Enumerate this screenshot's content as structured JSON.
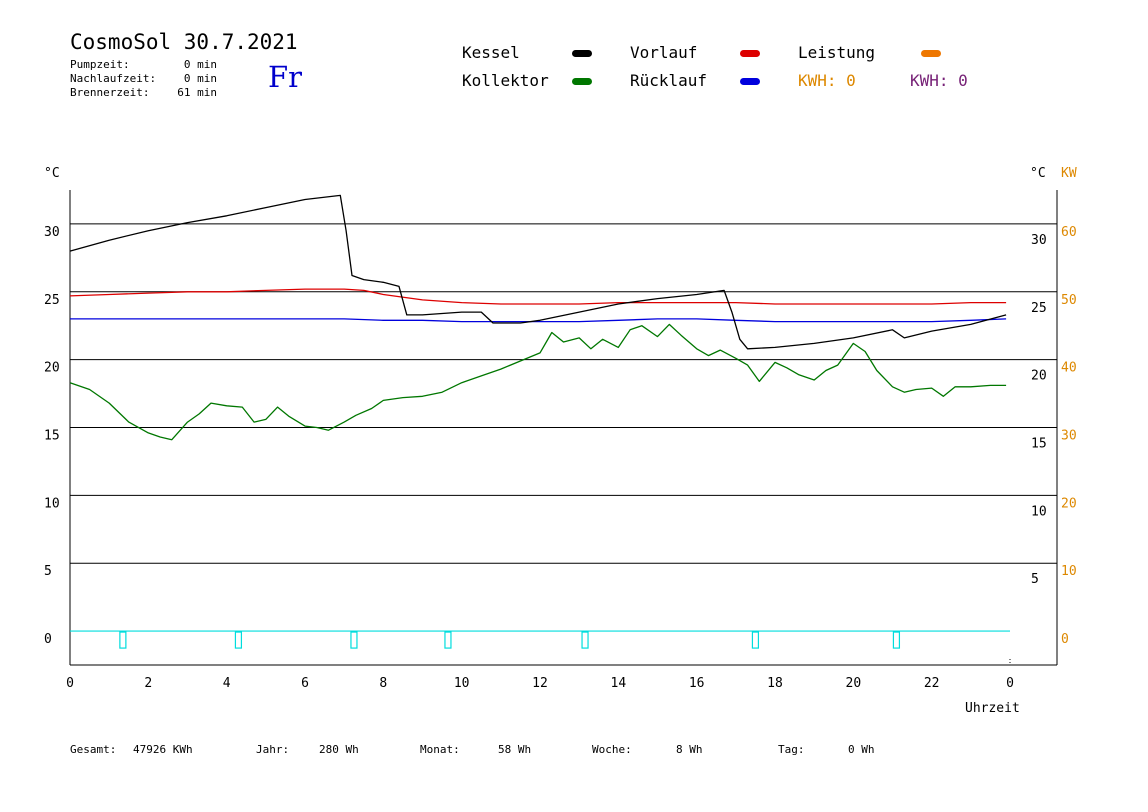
{
  "header": {
    "title": "CosmoSol 30.7.2021",
    "weekday": "Fr",
    "stats": [
      {
        "label": "Pumpzeit:",
        "value": "0 min"
      },
      {
        "label": "Nachlaufzeit:",
        "value": "0 min"
      },
      {
        "label": "Brennerzeit:",
        "value": "61 min"
      }
    ]
  },
  "legend": {
    "items": [
      {
        "label": "Kessel",
        "color": "#000000"
      },
      {
        "label": "Vorlauf",
        "color": "#dd0000"
      },
      {
        "label": "Leistung",
        "color": "#ee7700"
      },
      {
        "label": "Kollektor",
        "color": "#007700"
      },
      {
        "label": "Rücklauf",
        "color": "#0000dd"
      }
    ],
    "kwh_orange": "KWH: 0",
    "kwh_purple": "KWH: 0",
    "kwh_orange_color": "#dd8800",
    "kwh_purple_color": "#772277"
  },
  "footer": {
    "items": [
      {
        "label": "Gesamt:",
        "value": "47926 KWh"
      },
      {
        "label": "Jahr:",
        "value": "280 Wh"
      },
      {
        "label": "Monat:",
        "value": "58 Wh"
      },
      {
        "label": "Woche:",
        "value": "8 Wh"
      },
      {
        "label": "Tag:",
        "value": "0 Wh"
      }
    ]
  },
  "chart_data": {
    "type": "line",
    "title": "",
    "xlabel": "Uhrzeit",
    "ylabel_left": "°C",
    "ylabel_right_c": "°C",
    "ylabel_right_kw": "KW",
    "xlim": [
      0,
      24
    ],
    "ylim": [
      -2.5,
      32.5
    ],
    "grid": true,
    "x_ticks": [
      "0",
      "2",
      "4",
      "6",
      "8",
      "10",
      "12",
      "14",
      "16",
      "18",
      "20",
      "22",
      "0"
    ],
    "y_ticks_left": [
      "0",
      "5",
      "10",
      "15",
      "20",
      "25",
      "30"
    ],
    "y_ticks_right_c": [
      "5",
      "10",
      "15",
      "20",
      "25",
      "30"
    ],
    "y_ticks_right_kw": [
      "0",
      "10",
      "20",
      "30",
      "40",
      "50",
      "60"
    ],
    "series": [
      {
        "name": "Kessel",
        "color": "#000000",
        "x": [
          0,
          1,
          2,
          3,
          4,
          5,
          6,
          6.9,
          7.05,
          7.2,
          7.5,
          8.0,
          8.4,
          8.6,
          9.0,
          10.0,
          10.5,
          10.8,
          11.5,
          12,
          13,
          14,
          15,
          16,
          16.7,
          16.9,
          17.1,
          17.3,
          18,
          19,
          20,
          21,
          21.3,
          22,
          23,
          23.9
        ],
        "y": [
          28,
          28.8,
          29.5,
          30.1,
          30.6,
          31.2,
          31.8,
          32.1,
          29.5,
          26.2,
          25.9,
          25.7,
          25.4,
          23.3,
          23.3,
          23.5,
          23.5,
          22.7,
          22.7,
          22.9,
          23.5,
          24.1,
          24.5,
          24.8,
          25.1,
          23.5,
          21.5,
          20.8,
          20.9,
          21.2,
          21.6,
          22.2,
          21.6,
          22.1,
          22.6,
          23.3
        ]
      },
      {
        "name": "Vorlauf",
        "color": "#dd0000",
        "x": [
          0,
          1,
          2,
          3,
          4,
          5,
          6,
          7,
          7.5,
          8,
          9,
          10,
          11,
          12,
          13,
          14,
          15,
          16,
          17,
          18,
          19,
          20,
          21,
          22,
          23,
          23.9
        ],
        "y": [
          24.7,
          24.8,
          24.9,
          25.0,
          25.0,
          25.1,
          25.2,
          25.2,
          25.1,
          24.8,
          24.4,
          24.2,
          24.1,
          24.1,
          24.1,
          24.2,
          24.2,
          24.2,
          24.2,
          24.1,
          24.1,
          24.1,
          24.1,
          24.1,
          24.2,
          24.2
        ]
      },
      {
        "name": "Rücklauf",
        "color": "#0000dd",
        "x": [
          0,
          1,
          2,
          3,
          4,
          5,
          6,
          7,
          8,
          9,
          10,
          11,
          12,
          13,
          14,
          15,
          16,
          17,
          18,
          19,
          20,
          21,
          22,
          23,
          23.9
        ],
        "y": [
          23.0,
          23.0,
          23.0,
          23.0,
          23.0,
          23.0,
          23.0,
          23.0,
          22.9,
          22.9,
          22.8,
          22.8,
          22.8,
          22.8,
          22.9,
          23.0,
          23.0,
          22.9,
          22.8,
          22.8,
          22.8,
          22.8,
          22.8,
          22.9,
          23.0
        ]
      },
      {
        "name": "Kollektor",
        "color": "#007700",
        "x": [
          0,
          0.5,
          1,
          1.5,
          2,
          2.3,
          2.6,
          3,
          3.3,
          3.6,
          4,
          4.4,
          4.7,
          5,
          5.3,
          5.6,
          6,
          6.3,
          6.6,
          7,
          7.3,
          7.7,
          8,
          8.5,
          9,
          9.5,
          10,
          10.5,
          11,
          11.5,
          12,
          12.3,
          12.6,
          13,
          13.3,
          13.6,
          14,
          14.3,
          14.6,
          15,
          15.3,
          15.6,
          16,
          16.3,
          16.6,
          17,
          17.3,
          17.6,
          18,
          18.3,
          18.6,
          19,
          19.3,
          19.6,
          20,
          20.3,
          20.6,
          21,
          21.3,
          21.6,
          22,
          22.3,
          22.6,
          23,
          23.5,
          23.9
        ],
        "y": [
          18.3,
          17.8,
          16.8,
          15.4,
          14.6,
          14.3,
          14.1,
          15.4,
          16.0,
          16.8,
          16.6,
          16.5,
          15.4,
          15.6,
          16.5,
          15.8,
          15.1,
          15.0,
          14.8,
          15.4,
          15.9,
          16.4,
          17.0,
          17.2,
          17.3,
          17.6,
          18.3,
          18.8,
          19.3,
          19.9,
          20.5,
          22.0,
          21.3,
          21.6,
          20.8,
          21.5,
          20.9,
          22.2,
          22.5,
          21.7,
          22.6,
          21.8,
          20.8,
          20.3,
          20.7,
          20.1,
          19.6,
          18.4,
          19.8,
          19.4,
          18.9,
          18.5,
          19.2,
          19.6,
          21.2,
          20.6,
          19.2,
          18.0,
          17.6,
          17.8,
          17.9,
          17.3,
          18.0,
          18.0,
          18.1,
          18.1
        ]
      }
    ],
    "pump_markers_x": [
      1.35,
      4.3,
      7.25,
      9.65,
      13.15,
      17.5,
      21.1
    ]
  }
}
